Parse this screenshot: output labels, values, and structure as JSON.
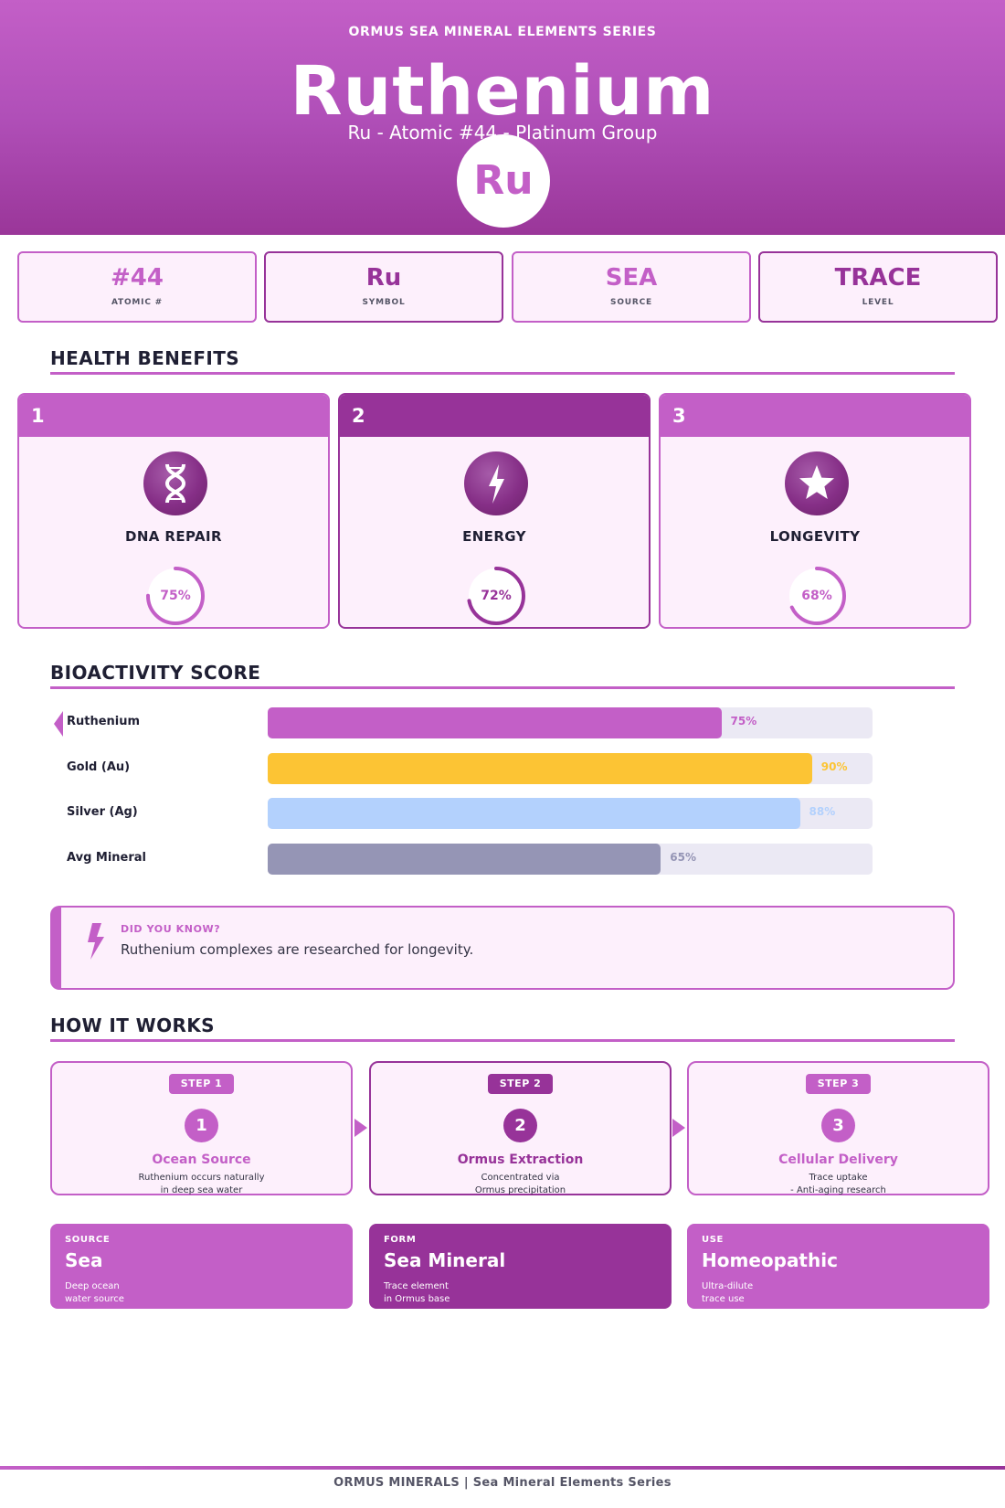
{
  "header": {
    "series": "ORMUS SEA MINERAL ELEMENTS SERIES",
    "title": "Ruthenium",
    "subtitle": "Ru  -  Atomic #44  -  Platinum Group",
    "badge": "Ru"
  },
  "stats": [
    {
      "value": "#44",
      "label": "ATOMIC #"
    },
    {
      "value": "Ru",
      "label": "SYMBOL"
    },
    {
      "value": "SEA",
      "label": "SOURCE"
    },
    {
      "value": "TRACE",
      "label": "LEVEL"
    }
  ],
  "benefits_section": {
    "title": "HEALTH BENEFITS"
  },
  "benefits": [
    {
      "number": "1",
      "name": "DNA REPAIR",
      "percent_label": "75%",
      "percent": 75,
      "icon": "dna-icon"
    },
    {
      "number": "2",
      "name": "ENERGY",
      "percent_label": "72%",
      "percent": 72,
      "icon": "lightning-icon"
    },
    {
      "number": "3",
      "name": "LONGEVITY",
      "percent_label": "68%",
      "percent": 68,
      "icon": "star-icon"
    }
  ],
  "bioactivity_section": {
    "title": "BIOACTIVITY SCORE"
  },
  "bioactivity": [
    {
      "name": "Ruthenium",
      "label": "75%",
      "value": 75,
      "color": "#c35fc7",
      "highlight": true
    },
    {
      "name": "Gold (Au)",
      "label": "90%",
      "value": 90,
      "color": "#fcc434"
    },
    {
      "name": "Silver (Ag)",
      "label": "88%",
      "value": 88,
      "color": "#b3d1fd"
    },
    {
      "name": "Avg Mineral",
      "label": "65%",
      "value": 65,
      "color": "#9595b5"
    }
  ],
  "fact": {
    "label": "DID YOU KNOW?",
    "text": "Ruthenium complexes are researched for longevity.",
    "icon": "lightning-icon"
  },
  "how_section": {
    "title": "HOW IT WORKS"
  },
  "steps": [
    {
      "tag": "STEP 1",
      "num": "1",
      "title": "Ocean Source",
      "line1": "Ruthenium occurs naturally",
      "line2": "in deep sea water"
    },
    {
      "tag": "STEP 2",
      "num": "2",
      "title": "Ormus Extraction",
      "line1": "Concentrated via",
      "line2": "Ormus precipitation"
    },
    {
      "tag": "STEP 3",
      "num": "3",
      "title": "Cellular Delivery",
      "line1": "Trace uptake",
      "line2": "- Anti-aging research"
    }
  ],
  "info_cards": [
    {
      "key": "SOURCE",
      "value": "Sea",
      "line1": "Deep ocean",
      "line2": "water source"
    },
    {
      "key": "FORM",
      "value": "Sea Mineral",
      "line1": "Trace element",
      "line2": "in Ormus base"
    },
    {
      "key": "USE",
      "value": "Homeopathic",
      "line1": "Ultra-dilute",
      "line2": "trace use"
    }
  ],
  "footer": {
    "text": "ORMUS MINERALS  |  Sea Mineral Elements Series"
  },
  "colors": {
    "primary": "#c35fc7",
    "dark": "#973399",
    "card_bg": "#fdf0fc",
    "track": "#ebe9f4"
  }
}
